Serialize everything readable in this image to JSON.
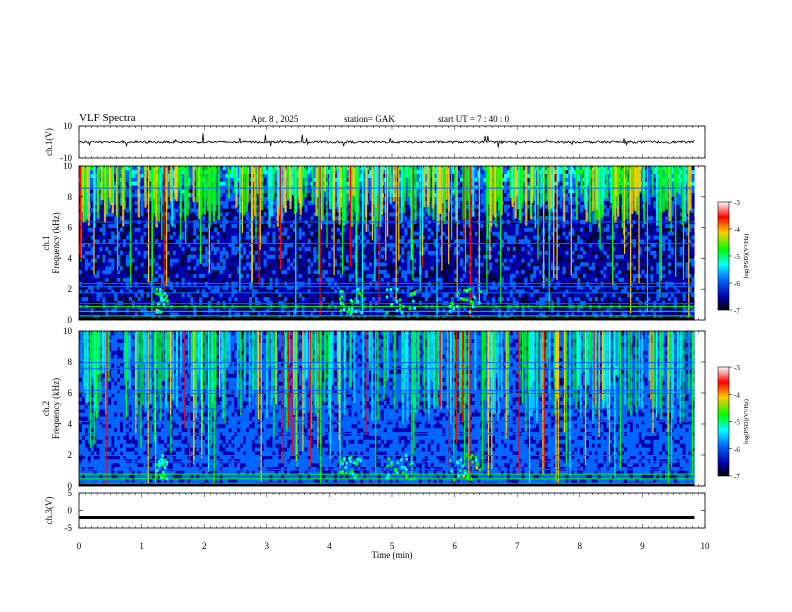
{
  "header": {
    "title": "VLF  Spectra",
    "date": "Apr. 8   ,  2025",
    "station": "station= GAK",
    "start_ut": "start  UT  =    7  : 40 : 0"
  },
  "colors": {
    "background": "#000033",
    "trace": "#000000",
    "colormap": [
      "#ffffff",
      "#ff0000",
      "#ffcc00",
      "#00ff00",
      "#00ffff",
      "#0066ff",
      "#0000aa",
      "#000000"
    ]
  },
  "chart_data": [
    {
      "type": "line",
      "id": "ch1-waveform",
      "ylabel": "ch.1(V)",
      "ylim": [
        -10,
        10
      ],
      "yticks": [
        "10",
        "-10"
      ],
      "xlim": [
        0,
        10
      ],
      "description_values": {
        "baseline_v": 0,
        "spike_max_v": 4
      }
    },
    {
      "type": "heatmap",
      "id": "ch1-spectrogram",
      "ylabel": "ch.1\nFrequency  (kHz)",
      "ylabel_lines": [
        "ch.1",
        "Frequency  (kHz)"
      ],
      "ylim": [
        0,
        10
      ],
      "yticks": [
        "0",
        "2",
        "4",
        "6",
        "8",
        "10"
      ],
      "xlim": [
        0,
        10
      ],
      "colorbar": {
        "label": "log(PSD)(V²/Hz)",
        "range": [
          -7,
          -3
        ],
        "ticks": [
          "-3",
          "-4",
          "-5",
          "-6",
          "-7"
        ]
      }
    },
    {
      "type": "heatmap",
      "id": "ch2-spectrogram",
      "ylabel": "ch.2\nFrequency  (kHz)",
      "ylabel_lines": [
        "ch.2",
        "Frequency  (kHz)"
      ],
      "ylim": [
        0,
        10
      ],
      "yticks": [
        "0",
        "2",
        "4",
        "6",
        "8",
        "10"
      ],
      "xlim": [
        0,
        10
      ],
      "colorbar": {
        "label": "log(PSD)(V²/Hz)",
        "range": [
          -7,
          -3
        ],
        "ticks": [
          "-3",
          "-4",
          "-5",
          "-6",
          "-7"
        ]
      }
    },
    {
      "type": "line",
      "id": "ch3-waveform",
      "ylabel": "ch.3(V)",
      "ylim": [
        -5,
        5
      ],
      "yticks": [
        "5",
        "0",
        "-5"
      ],
      "xlim": [
        0,
        10
      ],
      "description_values": {
        "baseline_v": -2
      }
    }
  ],
  "xaxis": {
    "label": "Time  (min)",
    "ticks": [
      "0",
      "1",
      "2",
      "3",
      "4",
      "5",
      "6",
      "7",
      "8",
      "9",
      "10"
    ],
    "data_end_min": 9.83
  }
}
